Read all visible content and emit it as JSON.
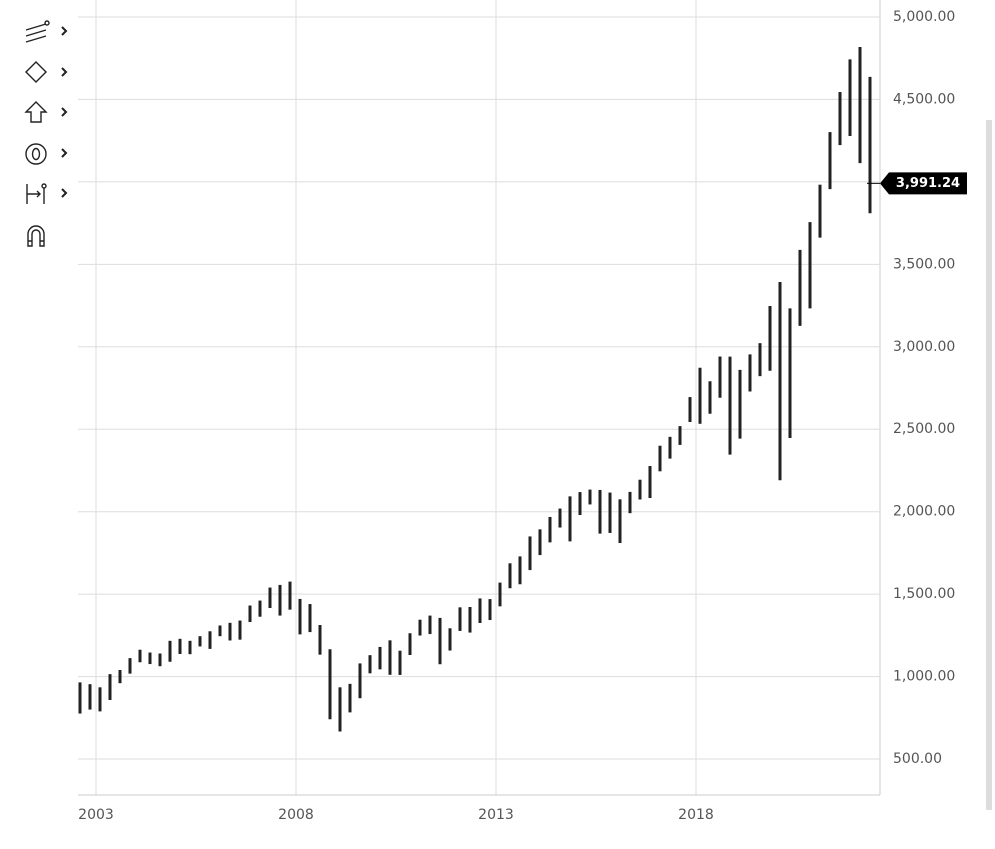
{
  "chart_data": {
    "type": "range-bar",
    "x": [
      2002.6,
      2002.85,
      2003.1,
      2003.35,
      2003.6,
      2003.85,
      2004.1,
      2004.35,
      2004.6,
      2004.85,
      2005.1,
      2005.35,
      2005.6,
      2005.85,
      2006.1,
      2006.35,
      2006.6,
      2006.85,
      2007.1,
      2007.35,
      2007.6,
      2007.85,
      2008.1,
      2008.35,
      2008.6,
      2008.85,
      2009.1,
      2009.35,
      2009.6,
      2009.85,
      2010.1,
      2010.35,
      2010.6,
      2010.85,
      2011.1,
      2011.35,
      2011.6,
      2011.85,
      2012.1,
      2012.35,
      2012.6,
      2012.85,
      2013.1,
      2013.35,
      2013.6,
      2013.85,
      2014.1,
      2014.35,
      2014.6,
      2014.85,
      2015.1,
      2015.35,
      2015.6,
      2015.85,
      2016.1,
      2016.35,
      2016.6,
      2016.85,
      2017.1,
      2017.35,
      2017.6,
      2017.85,
      2018.1,
      2018.35,
      2018.6,
      2018.85,
      2019.1,
      2019.35,
      2019.6,
      2019.85,
      2020.1,
      2020.35,
      2020.6,
      2020.85,
      2021.1,
      2021.35,
      2021.6,
      2021.85,
      2022.1,
      2022.35
    ],
    "high": [
      965,
      954,
      935,
      1015,
      1040,
      1112,
      1163,
      1146,
      1140,
      1217,
      1229,
      1217,
      1245,
      1275,
      1310,
      1326,
      1340,
      1431,
      1461,
      1540,
      1556,
      1576,
      1471,
      1440,
      1313,
      1166,
      935,
      956,
      1080,
      1130,
      1180,
      1220,
      1157,
      1263,
      1345,
      1370,
      1356,
      1293,
      1420,
      1422,
      1474,
      1470,
      1570,
      1687,
      1729,
      1850,
      1893,
      1968,
      2019,
      2093,
      2119,
      2134,
      2132,
      2116,
      2075,
      2120,
      2194,
      2277,
      2400,
      2454,
      2519,
      2695,
      2873,
      2791,
      2941,
      2940,
      2860,
      2954,
      3022,
      3247,
      3393,
      3233,
      3588,
      3756,
      3983,
      4302,
      4545,
      4743,
      4818,
      4637
    ],
    "low": [
      776,
      800,
      789,
      858,
      960,
      1018,
      1087,
      1076,
      1063,
      1090,
      1137,
      1136,
      1183,
      1168,
      1245,
      1219,
      1224,
      1331,
      1363,
      1416,
      1370,
      1406,
      1256,
      1270,
      1133,
      741,
      667,
      783,
      869,
      1020,
      1044,
      1011,
      1010,
      1131,
      1249,
      1258,
      1075,
      1158,
      1277,
      1267,
      1325,
      1343,
      1426,
      1536,
      1560,
      1646,
      1737,
      1814,
      1904,
      1820,
      1980,
      2044,
      1867,
      1871,
      1810,
      1991,
      2074,
      2083,
      2245,
      2322,
      2405,
      2544,
      2533,
      2594,
      2691,
      2346,
      2443,
      2729,
      2822,
      2855,
      2191,
      2447,
      3127,
      3233,
      3662,
      3956,
      4223,
      4278,
      4114,
      3810
    ],
    "color": "#222222",
    "last_value": 3991.24,
    "last_value_label": "3,991.24",
    "xlim": [
      2002.55,
      2022.6
    ],
    "xticks": [
      2003,
      2008,
      2013,
      2018
    ],
    "ylim": [
      282,
      5103
    ],
    "yticks": [
      {
        "value": 500,
        "label": "500.00"
      },
      {
        "value": 1000,
        "label": "1,000.00"
      },
      {
        "value": 1500,
        "label": "1,500.00"
      },
      {
        "value": 2000,
        "label": "2,000.00"
      },
      {
        "value": 2500,
        "label": "2,500.00"
      },
      {
        "value": 3000,
        "label": "3,000.00"
      },
      {
        "value": 3500,
        "label": "3,500.00"
      },
      {
        "value": 4000,
        "label": "4,000.00"
      },
      {
        "value": 4500,
        "label": "4,500.00"
      },
      {
        "value": 5000,
        "label": "5,000.00"
      }
    ],
    "grid": true
  }
}
